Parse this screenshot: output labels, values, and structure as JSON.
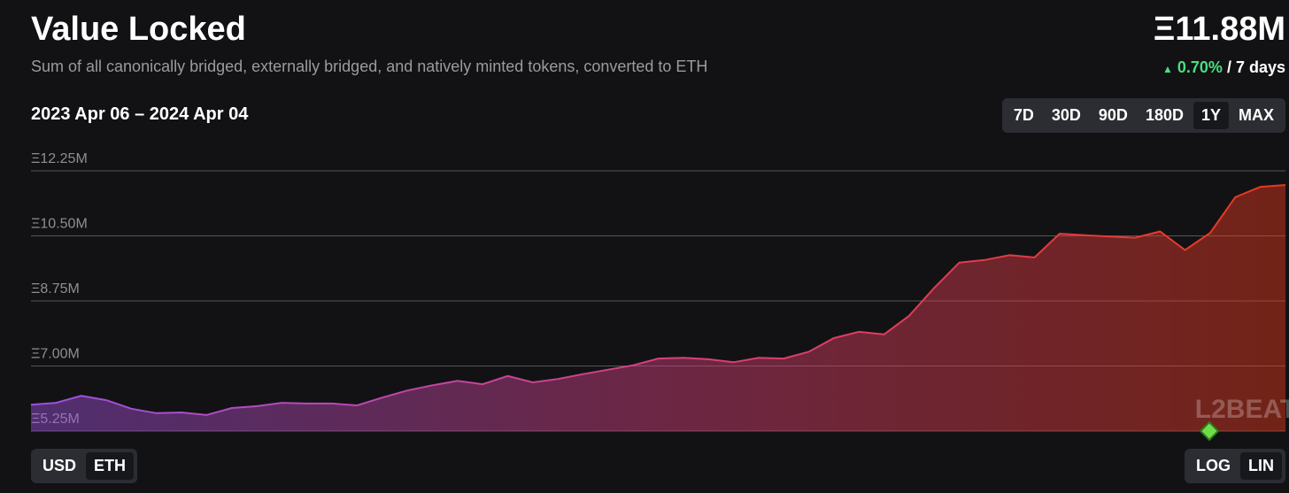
{
  "header": {
    "title": "Value Locked",
    "subtitle": "Sum of all canonically bridged, externally bridged, and natively minted tokens, converted to ETH",
    "total": "Ξ11.88M",
    "change": "0.70%",
    "change_period": "/ 7 days",
    "date_range": "2023 Apr 06 – 2024 Apr 04"
  },
  "controls": {
    "ranges": [
      "7D",
      "30D",
      "90D",
      "180D",
      "1Y",
      "MAX"
    ],
    "units": [
      "USD",
      "ETH"
    ],
    "scales": [
      "LOG",
      "LIN"
    ]
  },
  "chart_data": {
    "type": "area",
    "watermark": "L2BEAT",
    "series": [
      {
        "colors": [
          "#9b51e0",
          "#d9407f",
          "#e8381b"
        ],
        "values": [
          5.96,
          6.01,
          6.2,
          6.08,
          5.85,
          5.73,
          5.75,
          5.68,
          5.87,
          5.92,
          6.01,
          5.99,
          5.99,
          5.94,
          6.15,
          6.34,
          6.48,
          6.6,
          6.51,
          6.73,
          6.56,
          6.65,
          6.78,
          6.9,
          7.02,
          7.2,
          7.22,
          7.18,
          7.1,
          7.22,
          7.2,
          7.38,
          7.75,
          7.92,
          7.85,
          8.35,
          9.1,
          9.78,
          9.85,
          9.98,
          9.92,
          10.56,
          10.52,
          10.48,
          10.45,
          10.62,
          10.12,
          10.58,
          11.54,
          11.82,
          11.87
        ]
      }
    ],
    "ylim": [
      5.25,
      12.25
    ],
    "yticks": [
      {
        "value": 5.25,
        "label": "Ξ5.25M"
      },
      {
        "value": 7.0,
        "label": "Ξ7.00M"
      },
      {
        "value": 8.75,
        "label": "Ξ8.75M"
      },
      {
        "value": 10.5,
        "label": "Ξ10.50M"
      },
      {
        "value": 12.25,
        "label": "Ξ12.25M"
      }
    ],
    "grid": true
  }
}
